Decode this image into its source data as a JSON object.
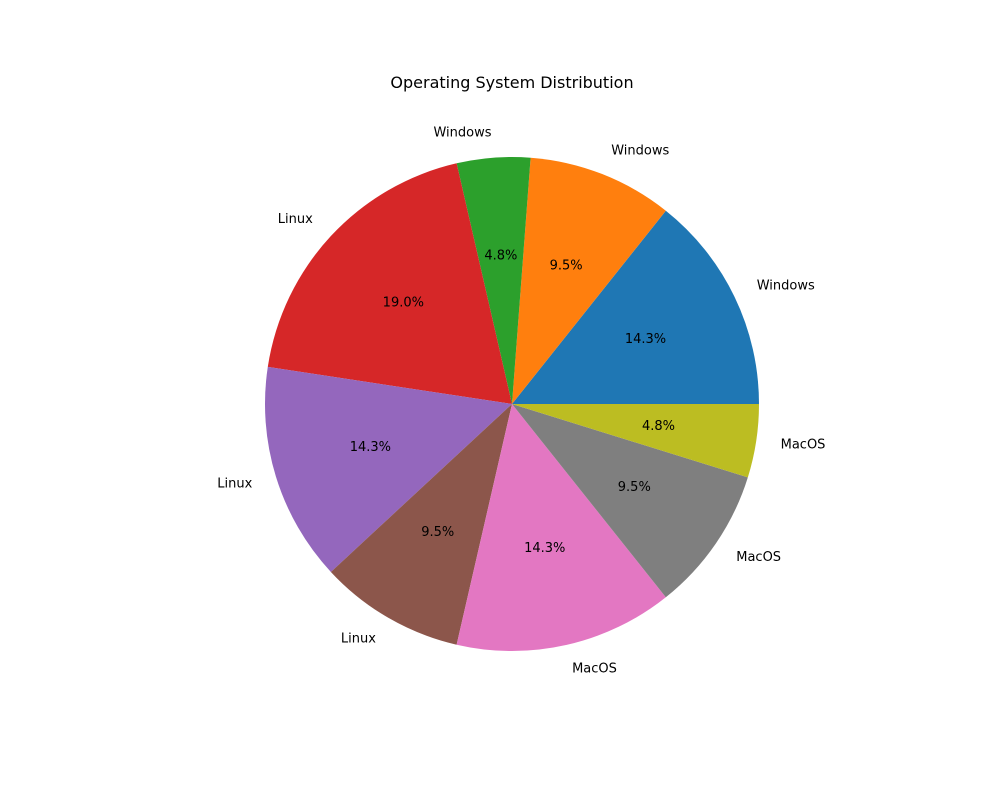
{
  "chart_data": {
    "type": "pie",
    "title": "Operating System Distribution",
    "labels": [
      "Windows",
      "Windows",
      "Windows",
      "Linux",
      "Linux",
      "Linux",
      "MacOS",
      "MacOS",
      "MacOS"
    ],
    "values": [
      14.3,
      9.5,
      4.8,
      19.0,
      14.3,
      9.5,
      14.3,
      9.5,
      4.8
    ],
    "percent_labels": [
      "14.3%",
      "9.5%",
      "4.8%",
      "19.0%",
      "14.3%",
      "9.5%",
      "14.3%",
      "9.5%",
      "4.8%"
    ],
    "colors": [
      "#1f77b4",
      "#ff7f0e",
      "#2ca02c",
      "#d62728",
      "#9467bd",
      "#8c564b",
      "#e377c2",
      "#7f7f7f",
      "#bcbd22"
    ],
    "start_angle_deg": 0,
    "direction": "counterclockwise",
    "legend": "none"
  }
}
